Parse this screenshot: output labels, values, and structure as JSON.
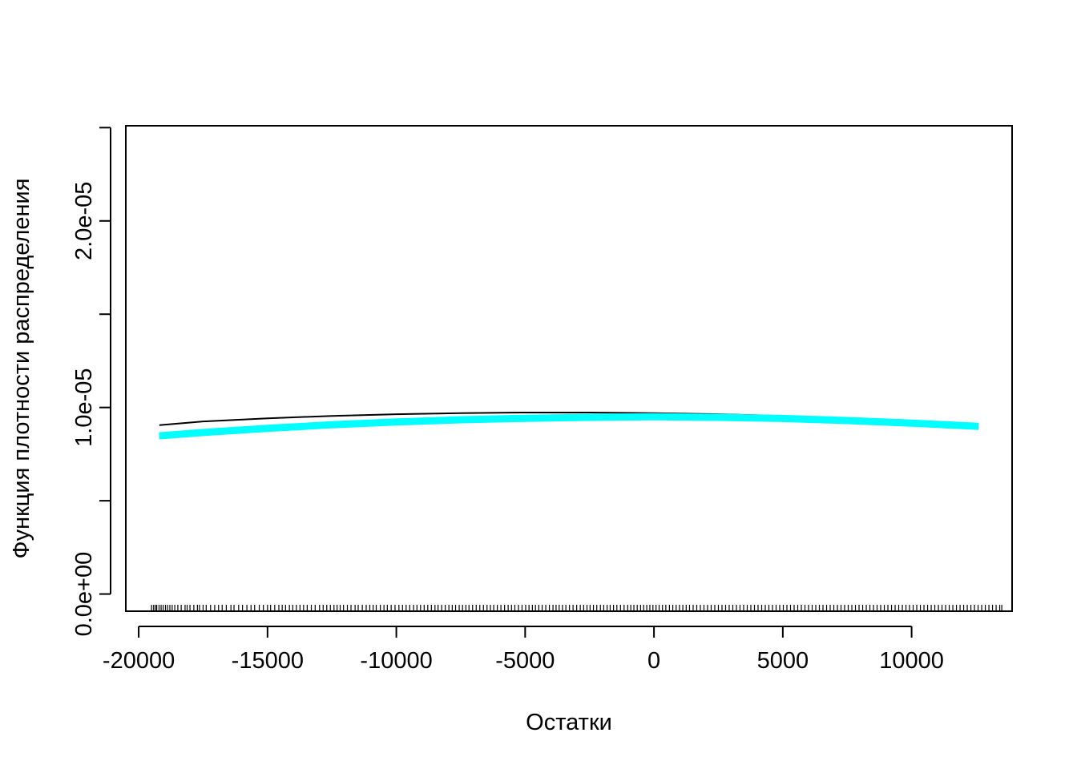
{
  "chart_data": {
    "type": "line",
    "title": "",
    "xlabel": "Остатки",
    "ylabel": "Функция плотности распределения",
    "xlim": [
      -20500,
      13900
    ],
    "ylim": [
      -9.2e-07,
      2.51e-05
    ],
    "x_ticks": [
      -20000,
      -15000,
      -10000,
      -5000,
      0,
      5000,
      10000
    ],
    "x_tick_labels": [
      "-20000",
      "-15000",
      "-10000",
      "-5000",
      "0",
      "5000",
      "10000"
    ],
    "y_ticks": [
      0,
      5e-06,
      1e-05,
      1.5e-05,
      2e-05,
      2.5e-05
    ],
    "y_tick_labels": [
      "0.0e+00",
      "",
      "1.0e-05",
      "",
      "2.0e-05",
      ""
    ],
    "grid": false,
    "legend": false,
    "series": [
      {
        "color": "#000000",
        "line_width": 2,
        "x": [
          -19200,
          -17500,
          -15000,
          -12500,
          -10000,
          -7500,
          -5000,
          -2500,
          0,
          2500,
          5000,
          7500,
          10000,
          12600
        ],
        "y": [
          9.05e-06,
          9.25e-06,
          9.42e-06,
          9.55e-06,
          9.64e-06,
          9.7e-06,
          9.73e-06,
          9.73e-06,
          9.7e-06,
          9.64e-06,
          9.55e-06,
          9.43e-06,
          9.27e-06,
          9.05e-06
        ]
      },
      {
        "color": "#00ffff",
        "line_width": 9,
        "x": [
          -19200,
          -17500,
          -15000,
          -12500,
          -10000,
          -7500,
          -5000,
          -2500,
          0,
          2500,
          5000,
          7500,
          10000,
          12600
        ],
        "y": [
          8.48e-06,
          8.66e-06,
          8.88e-06,
          9.07e-06,
          9.22e-06,
          9.34e-06,
          9.42e-06,
          9.47e-06,
          9.5e-06,
          9.47e-06,
          9.41e-06,
          9.3e-06,
          9.16e-06,
          8.99e-06
        ]
      }
    ],
    "rug": [
      -19500,
      -19420,
      -19350,
      -19300,
      -19210,
      -19130,
      -19050,
      -18960,
      -18880,
      -18790,
      -18700,
      -18600,
      -18480,
      -18350,
      -18200,
      -18120,
      -18010,
      -17860,
      -17720,
      -17640,
      -17500,
      -17380,
      -17210,
      -17050,
      -16900,
      -16760,
      -16600,
      -16420,
      -16300,
      -16120,
      -15970,
      -15800,
      -15640,
      -15500,
      -15320,
      -15160,
      -15000,
      -14880,
      -14720,
      -14560,
      -14430,
      -14300,
      -14150,
      -14020,
      -13880,
      -13740,
      -13600,
      -13460,
      -13300,
      -13150,
      -12980,
      -12840,
      -12700,
      -12560,
      -12420,
      -12300,
      -12180,
      -12050,
      -11900,
      -11760,
      -11600,
      -11480,
      -11320,
      -11170,
      -11030,
      -10900,
      -10780,
      -10620,
      -10480,
      -10350,
      -10200,
      -10050,
      -9900,
      -9760,
      -9620,
      -9480,
      -9330,
      -9200,
      -9060,
      -8920,
      -8780,
      -8640,
      -8500,
      -8380,
      -8240,
      -8100,
      -7960,
      -7830,
      -7700,
      -7560,
      -7430,
      -7300,
      -7180,
      -7040,
      -6900,
      -6760,
      -6620,
      -6480,
      -6350,
      -6220,
      -6080,
      -5940,
      -5800,
      -5660,
      -5530,
      -5400,
      -5260,
      -5120,
      -4980,
      -4850,
      -4720,
      -4600,
      -4470,
      -4340,
      -4200,
      -4060,
      -3920,
      -3800,
      -3680,
      -3550,
      -3420,
      -3280,
      -3140,
      -3000,
      -2860,
      -2730,
      -2600,
      -2480,
      -2350,
      -2220,
      -2080,
      -1950,
      -1820,
      -1700,
      -1570,
      -1440,
      -1300,
      -1160,
      -1020,
      -900,
      -780,
      -650,
      -520,
      -400,
      -280,
      -160,
      -40,
      80,
      200,
      330,
      460,
      600,
      730,
      860,
      990,
      1120,
      1250,
      1380,
      1520,
      1660,
      1800,
      1940,
      2080,
      2220,
      2360,
      2500,
      2640,
      2780,
      2920,
      3060,
      3200,
      3340,
      3480,
      3620,
      3760,
      3900,
      4040,
      4180,
      4320,
      4460,
      4600,
      4740,
      4880,
      5020,
      5160,
      5300,
      5440,
      5580,
      5720,
      5860,
      6000,
      6140,
      6280,
      6420,
      6560,
      6700,
      6840,
      6980,
      7120,
      7260,
      7400,
      7540,
      7680,
      7820,
      7960,
      8100,
      8240,
      8380,
      8520,
      8660,
      8800,
      8940,
      9080,
      9220,
      9360,
      9500,
      9640,
      9780,
      9920,
      10060,
      10200,
      10340,
      10480,
      10620,
      10760,
      10900,
      11040,
      11180,
      11320,
      11460,
      11600,
      11740,
      11880,
      12020,
      12160,
      12300,
      12440,
      12580,
      12720,
      12860,
      13000,
      13140,
      13280,
      13420,
      13500
    ]
  }
}
